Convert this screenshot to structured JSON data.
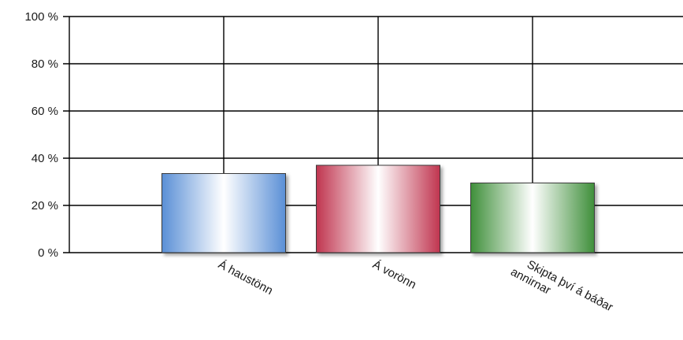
{
  "chart_data": {
    "type": "bar",
    "categories": [
      {
        "label": "Á haustönn",
        "lines": [
          "Á haustönn"
        ]
      },
      {
        "label": "Á vorönn",
        "lines": [
          "Á vorönn"
        ]
      },
      {
        "label": "Skipta því á báðar annirnar",
        "lines": [
          "Skipta því á báðar",
          "annirnar"
        ]
      }
    ],
    "values": [
      33.5,
      37,
      29.5
    ],
    "ylim": [
      0,
      100
    ],
    "yticks": [
      0,
      20,
      40,
      60,
      80,
      100
    ],
    "ytick_suffix": " %",
    "grid": true,
    "colors": [
      {
        "edge": "#5a8fd6",
        "mid": "#ffffff"
      },
      {
        "edge": "#c0354f",
        "mid": "#ffffff"
      },
      {
        "edge": "#3f8f3a",
        "mid": "#ffffff"
      }
    ]
  }
}
